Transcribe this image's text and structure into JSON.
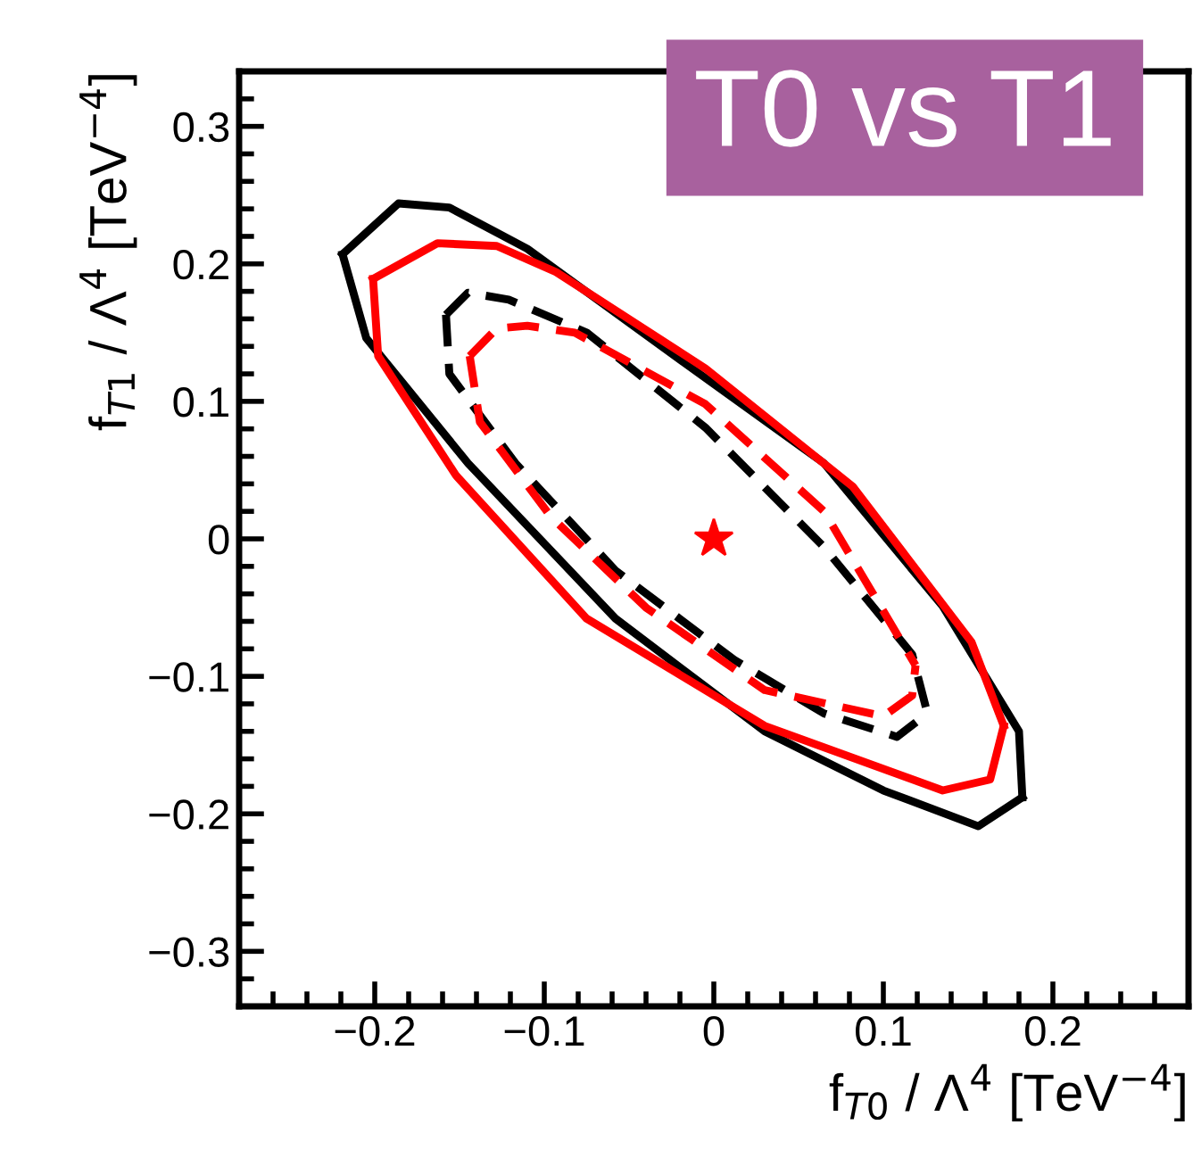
{
  "chart_data": {
    "type": "line",
    "title": "T0 vs T1",
    "xlabel": "f$_{T0}$ / Λ$^{4}$ [TeV$^{−4}$]",
    "ylabel": "f$_{T1}$ / Λ$^{4}$ [TeV$^{−4}$]",
    "xlim": [
      -0.28,
      0.28
    ],
    "ylim": [
      -0.34,
      0.34
    ],
    "xticks": [
      {
        "value": -0.2,
        "label": "−0.2"
      },
      {
        "value": -0.1,
        "label": "−0.1"
      },
      0,
      0.1,
      0.2
    ],
    "yticks": [
      {
        "value": -0.3,
        "label": "−0.3"
      },
      {
        "value": -0.2,
        "label": "−0.2"
      },
      {
        "value": -0.1,
        "label": "−0.1"
      },
      0,
      0.1,
      0.2,
      0.3
    ],
    "grid": false,
    "legend": false,
    "series": [
      {
        "type": "line",
        "color": "#000000",
        "line_style": "solid",
        "marker": "none",
        "x": [
          -0.219,
          -0.186,
          -0.156,
          -0.11,
          -0.023,
          0.065,
          0.135,
          0.18,
          0.182
        ],
        "values": [
          0.207,
          0.244,
          0.241,
          0.211,
          0.133,
          0.055,
          -0.049,
          -0.14,
          -0.188
        ]
      },
      {
        "type": "line",
        "color": "#000000",
        "line_style": "solid",
        "marker": "none",
        "x": [
          -0.219,
          -0.205,
          -0.145,
          -0.058,
          0.03,
          0.1,
          0.156,
          0.182
        ],
        "values": [
          0.207,
          0.146,
          0.055,
          -0.058,
          -0.14,
          -0.183,
          -0.209,
          -0.188
        ]
      },
      {
        "type": "line",
        "color": "#ff0000",
        "line_style": "solid",
        "marker": "none",
        "x": [
          -0.201,
          -0.163,
          -0.128,
          -0.093,
          -0.005,
          0.082,
          0.152,
          0.171
        ],
        "values": [
          0.189,
          0.215,
          0.213,
          0.194,
          0.124,
          0.038,
          -0.075,
          -0.136
        ]
      },
      {
        "type": "line",
        "color": "#ff0000",
        "line_style": "solid",
        "marker": "none",
        "x": [
          -0.201,
          -0.198,
          -0.152,
          -0.075,
          0.03,
          0.135,
          0.163,
          0.171
        ],
        "values": [
          0.189,
          0.133,
          0.046,
          -0.058,
          -0.136,
          -0.183,
          -0.175,
          -0.136
        ]
      },
      {
        "type": "line",
        "color": "#000000",
        "line_style": "dashed",
        "marker": "none",
        "x": [
          -0.158,
          -0.145,
          -0.121,
          -0.075,
          -0.005,
          0.065,
          0.117,
          0.126
        ],
        "values": [
          0.163,
          0.179,
          0.174,
          0.15,
          0.081,
          -0.006,
          -0.084,
          -0.127
        ]
      },
      {
        "type": "line",
        "color": "#000000",
        "line_style": "dashed",
        "marker": "none",
        "x": [
          -0.158,
          -0.156,
          -0.117,
          -0.058,
          0.012,
          0.065,
          0.108,
          0.126
        ],
        "values": [
          0.163,
          0.12,
          0.055,
          -0.023,
          -0.088,
          -0.127,
          -0.144,
          -0.127
        ]
      },
      {
        "type": "line",
        "color": "#ff0000",
        "line_style": "dashed",
        "marker": "none",
        "x": [
          -0.144,
          -0.128,
          -0.11,
          -0.082,
          -0.005,
          0.065,
          0.119
        ],
        "values": [
          0.133,
          0.153,
          0.155,
          0.15,
          0.098,
          0.02,
          -0.092
        ]
      },
      {
        "type": "line",
        "color": "#ff0000",
        "line_style": "dashed",
        "marker": "none",
        "x": [
          -0.144,
          -0.138,
          -0.096,
          -0.04,
          0.03,
          0.1,
          0.117,
          0.119
        ],
        "values": [
          0.133,
          0.085,
          0.016,
          -0.05,
          -0.11,
          -0.129,
          -0.114,
          -0.092
        ]
      },
      {
        "type": "scatter",
        "color": "#ff0000",
        "marker": "star",
        "x": [
          0
        ],
        "values": [
          0
        ]
      }
    ]
  }
}
